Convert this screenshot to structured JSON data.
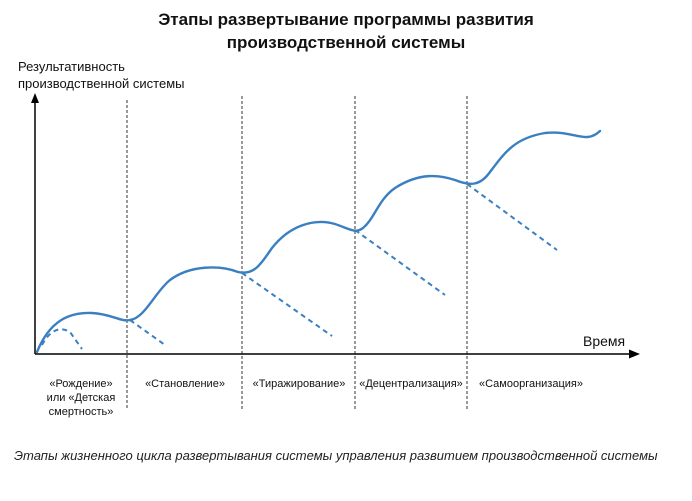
{
  "title": {
    "line1": "Этапы развертывание программы развития",
    "line2": "производственной системы"
  },
  "axes": {
    "y_label_line1": "Результативность",
    "y_label_line2": "производственной системы",
    "x_label": "Время"
  },
  "stages": [
    {
      "line1": "«Рождение»",
      "line2": "или «Детская",
      "line3": "смертность»"
    },
    {
      "line1": "«Становление»"
    },
    {
      "line1": "«Тиражирование»"
    },
    {
      "line1": "«Децентрализация»"
    },
    {
      "line1": "«Самоорганизация»"
    }
  ],
  "caption": "Этапы жизненного цикла развертывания системы управления развитием производственной системы",
  "colors": {
    "curve": "#3a7fc1",
    "axis": "#000000",
    "divider": "#333333"
  }
}
